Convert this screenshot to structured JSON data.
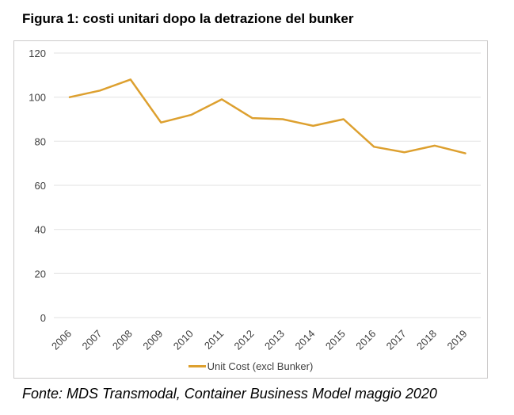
{
  "page": {
    "title": "Figura 1: costi unitari dopo la detrazione del bunker",
    "source_note": "Fonte: MDS Transmodal, Container Business Model maggio 2020"
  },
  "chart_data": {
    "type": "line",
    "title": "Figura 1: costi unitari dopo la detrazione del bunker",
    "categories": [
      "2006",
      "2007",
      "2008",
      "2009",
      "2010",
      "2011",
      "2012",
      "2013",
      "2014",
      "2015",
      "2016",
      "2017",
      "2018",
      "2019"
    ],
    "series": [
      {
        "name": "Unit Cost (excl Bunker)",
        "color": "#DDA02F",
        "values": [
          100,
          103,
          108,
          88.5,
          92,
          99,
          90.5,
          90,
          87,
          90,
          77.5,
          75,
          78,
          74.5
        ]
      }
    ],
    "xlabel": "",
    "ylabel": "",
    "ylim": [
      0,
      120
    ],
    "ytick_step": 20,
    "grid": true,
    "legend_position": "bottom",
    "colors": {
      "gridline": "#E2E2E2",
      "axis_text": "#404040",
      "frame_border": "#CCCACA"
    }
  }
}
